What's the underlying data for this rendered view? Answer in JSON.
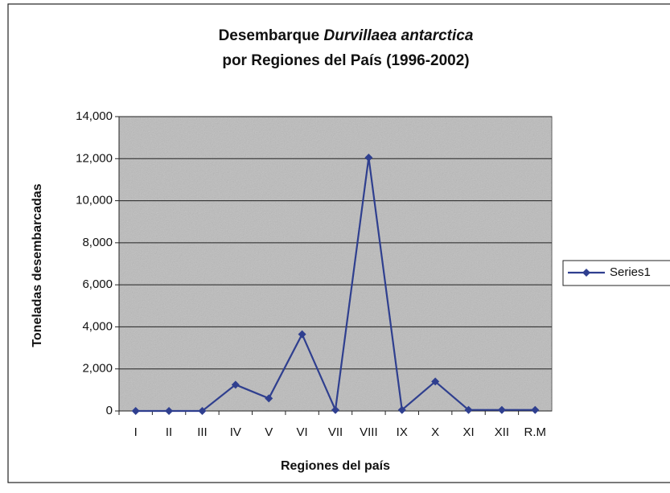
{
  "chart_data": {
    "type": "line",
    "title": {
      "lead": "Desembarque",
      "italic": "Durvillaea antarctica",
      "line2": "por Regiones del País (1996-2002)"
    },
    "x_label": "Regiones del país",
    "y_label": "Toneladas desembarcadas",
    "categories": [
      "I",
      "II",
      "III",
      "IV",
      "V",
      "VI",
      "VII",
      "VIII",
      "IX",
      "X",
      "XI",
      "XII",
      "R.M"
    ],
    "series": [
      {
        "name": "Series1",
        "color": "#2f3f8f",
        "values": [
          0,
          0,
          0,
          1250,
          600,
          3650,
          50,
          12050,
          50,
          1400,
          50,
          50,
          50
        ]
      }
    ],
    "ylim": [
      0,
      14000
    ],
    "yticks": [
      0,
      {
        "value": 2000,
        "label": "2,000"
      },
      {
        "value": 4000,
        "label": "4,000"
      },
      {
        "value": 6000,
        "label": "6,000"
      },
      {
        "value": 8000,
        "label": "8,000"
      },
      {
        "value": 10000,
        "label": "10,000"
      },
      {
        "value": 12000,
        "label": "12,000"
      },
      {
        "value": 14000,
        "label": "14,000"
      }
    ],
    "grid": true,
    "legend": "right"
  }
}
